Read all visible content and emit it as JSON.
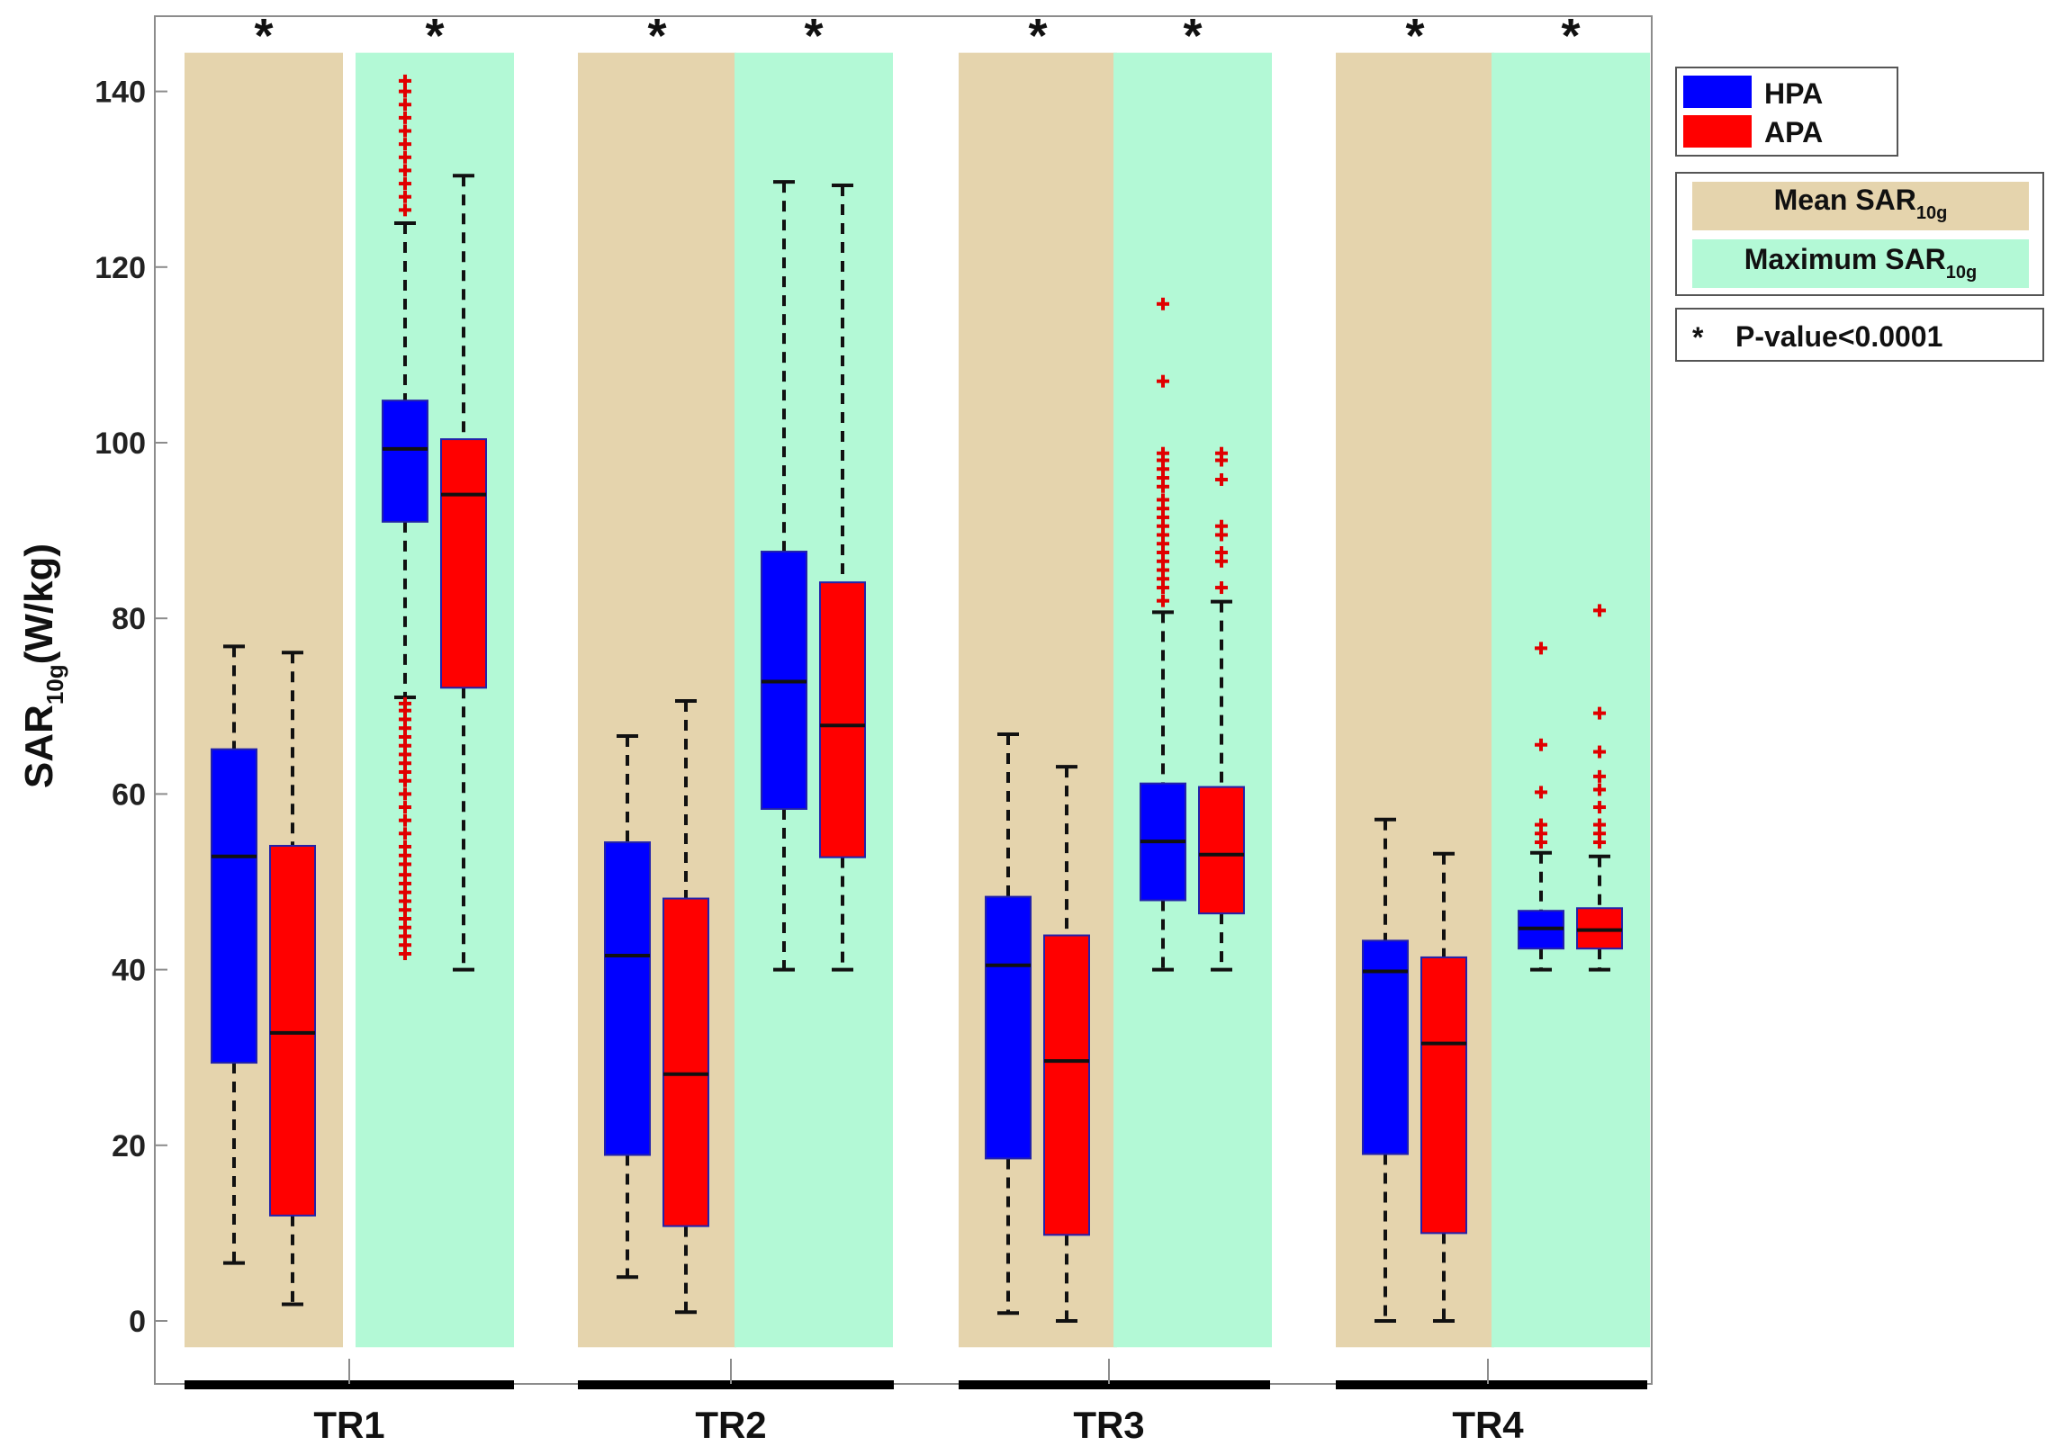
{
  "chart_data": {
    "type": "boxplot",
    "title": "",
    "ylabel": {
      "main": "SAR",
      "sub": "10g",
      "unit": "(W/kg)"
    },
    "ylim": [
      -3,
      148
    ],
    "yticks": [
      0,
      20,
      40,
      60,
      80,
      100,
      120,
      140
    ],
    "groups": [
      "TR1",
      "TR2",
      "TR3",
      "TR4"
    ],
    "significance_marker": "*",
    "legend": {
      "series": [
        {
          "name": "HPA",
          "color": "#0000ff"
        },
        {
          "name": "APA",
          "color": "#ff0000"
        }
      ],
      "backgrounds": [
        {
          "label": "Mean SAR",
          "sub": "10g",
          "color": "#e5d4ad"
        },
        {
          "label": "Maximum SAR",
          "sub": "10g",
          "color": "#b3f9d6"
        }
      ],
      "note_symbol": "*",
      "note_text": "P-value<0.0001"
    },
    "panels": [
      {
        "group": "TR1",
        "metric": "Mean SAR10g",
        "color": "#e5d4ad",
        "boxes": [
          {
            "series": "HPA",
            "whisker_low": 6.6,
            "q1": 29.4,
            "median": 52.9,
            "q3": 65.1,
            "whisker_high": 76.8,
            "outliers": []
          },
          {
            "series": "APA",
            "whisker_low": 1.9,
            "q1": 12.0,
            "median": 32.8,
            "q3": 54.1,
            "whisker_high": 76.1,
            "outliers": []
          }
        ]
      },
      {
        "group": "TR1",
        "metric": "Maximum SAR10g",
        "color": "#b3f9d6",
        "boxes": [
          {
            "series": "HPA",
            "whisker_low": 71.0,
            "q1": 91.0,
            "median": 99.3,
            "q3": 104.8,
            "whisker_high": 125.0,
            "outliers": [
              41.8,
              42.8,
              43.8,
              44.8,
              45.8,
              46.8,
              47.8,
              48.8,
              49.8,
              50.8,
              52.0,
              53.0,
              54.0,
              55.5,
              57.0,
              58.5,
              60.0,
              61.5,
              62.5,
              63.5,
              64.5,
              65.5,
              66.5,
              67.5,
              68.5,
              69.5,
              70.3,
              126.5,
              128.0,
              129.5,
              131.0,
              132.5,
              134.0,
              135.5,
              137.0,
              138.5,
              140.0,
              141.2
            ]
          },
          {
            "series": "APA",
            "whisker_low": 40.0,
            "q1": 72.1,
            "median": 94.1,
            "q3": 100.4,
            "whisker_high": 130.4,
            "outliers": []
          }
        ]
      },
      {
        "group": "TR2",
        "metric": "Mean SAR10g",
        "color": "#e5d4ad",
        "boxes": [
          {
            "series": "HPA",
            "whisker_low": 5.0,
            "q1": 18.9,
            "median": 41.6,
            "q3": 54.5,
            "whisker_high": 66.6,
            "outliers": []
          },
          {
            "series": "APA",
            "whisker_low": 1.0,
            "q1": 10.8,
            "median": 28.1,
            "q3": 48.1,
            "whisker_high": 70.6,
            "outliers": []
          }
        ]
      },
      {
        "group": "TR2",
        "metric": "Maximum SAR10g",
        "color": "#b3f9d6",
        "boxes": [
          {
            "series": "HPA",
            "whisker_low": 40.0,
            "q1": 58.3,
            "median": 72.8,
            "q3": 87.6,
            "whisker_high": 129.7,
            "outliers": []
          },
          {
            "series": "APA",
            "whisker_low": 40.0,
            "q1": 52.8,
            "median": 67.8,
            "q3": 84.1,
            "whisker_high": 129.3,
            "outliers": []
          }
        ]
      },
      {
        "group": "TR3",
        "metric": "Mean SAR10g",
        "color": "#e5d4ad",
        "boxes": [
          {
            "series": "HPA",
            "whisker_low": 0.9,
            "q1": 18.5,
            "median": 40.5,
            "q3": 48.3,
            "whisker_high": 66.8,
            "outliers": []
          },
          {
            "series": "APA",
            "whisker_low": 0.0,
            "q1": 9.8,
            "median": 29.6,
            "q3": 43.9,
            "whisker_high": 63.1,
            "outliers": []
          }
        ]
      },
      {
        "group": "TR3",
        "metric": "Maximum SAR10g",
        "color": "#b3f9d6",
        "boxes": [
          {
            "series": "HPA",
            "whisker_low": 40.0,
            "q1": 47.9,
            "median": 54.6,
            "q3": 61.2,
            "whisker_high": 80.7,
            "outliers": [
              82.0,
              83.5,
              84.5,
              85.5,
              86.5,
              87.5,
              88.5,
              89.5,
              90.5,
              91.5,
              92.5,
              93.5,
              95.0,
              96.0,
              97.0,
              98.0,
              98.8,
              107.0,
              115.8
            ]
          },
          {
            "series": "APA",
            "whisker_low": 40.0,
            "q1": 46.4,
            "median": 53.1,
            "q3": 60.8,
            "whisker_high": 81.9,
            "outliers": [
              83.5,
              86.5,
              87.5,
              89.5,
              90.5,
              95.8,
              98.0,
              98.8
            ]
          }
        ]
      },
      {
        "group": "TR4",
        "metric": "Mean SAR10g",
        "color": "#e5d4ad",
        "boxes": [
          {
            "series": "HPA",
            "whisker_low": 0.0,
            "q1": 19.0,
            "median": 39.8,
            "q3": 43.3,
            "whisker_high": 57.1,
            "outliers": []
          },
          {
            "series": "APA",
            "whisker_low": 0.0,
            "q1": 10.0,
            "median": 31.6,
            "q3": 41.4,
            "whisker_high": 53.2,
            "outliers": []
          }
        ]
      },
      {
        "group": "TR4",
        "metric": "Maximum SAR10g",
        "color": "#b3f9d6",
        "boxes": [
          {
            "series": "HPA",
            "whisker_low": 40.0,
            "q1": 42.4,
            "median": 44.7,
            "q3": 46.7,
            "whisker_high": 53.3,
            "outliers": [
              54.5,
              55.5,
              56.5,
              60.2,
              65.6,
              76.6
            ]
          },
          {
            "series": "APA",
            "whisker_low": 40.0,
            "q1": 42.4,
            "median": 44.5,
            "q3": 47.0,
            "whisker_high": 52.9,
            "outliers": [
              54.5,
              55.5,
              56.5,
              58.5,
              60.5,
              62.0,
              64.8,
              69.2,
              80.9
            ]
          }
        ]
      }
    ]
  }
}
